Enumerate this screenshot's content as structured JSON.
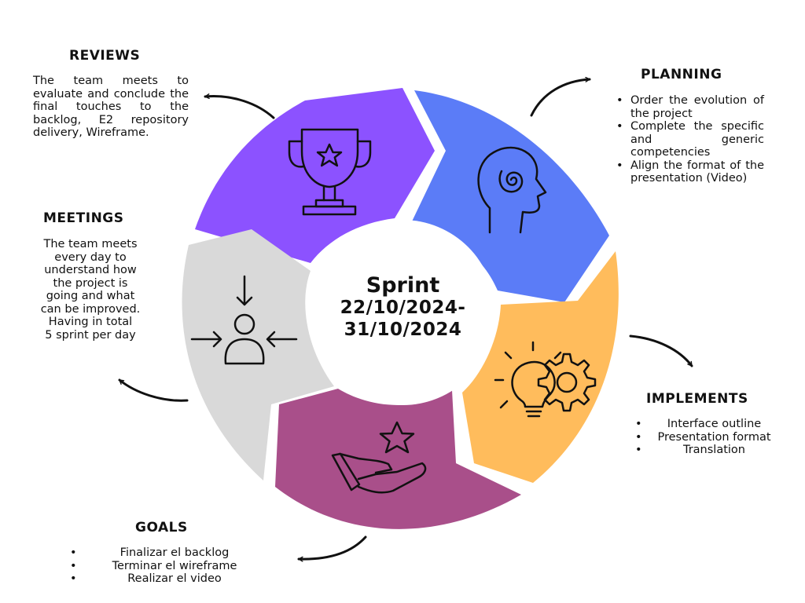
{
  "center": {
    "title": "Sprint",
    "date_start": "22/10/2024-",
    "date_end": "31/10/2024"
  },
  "colors": {
    "reviews": "#8C52FF",
    "planning": "#5B7CF7",
    "implements": "#FFBC5C",
    "goals": "#A94F8A",
    "meetings": "#D9D9D9",
    "stroke": "#111111"
  },
  "icons": {
    "reviews": "trophy-star-icon",
    "planning": "head-spiral-icon",
    "implements": "lightbulb-gear-icon",
    "goals": "hand-star-icon",
    "meetings": "person-arrows-icon"
  },
  "reviews": {
    "heading": "REVIEWS",
    "text": "The team meets to evaluate and conclude the final touches to the backlog, E2 repository delivery, Wireframe."
  },
  "planning": {
    "heading": "PLANNING",
    "items": [
      "Order the evolution of the project",
      "Complete the specific and generic competencies",
      "Align the format of the presentation (Video)"
    ]
  },
  "meetings": {
    "heading": "MEETINGS",
    "lines": [
      "The team meets",
      "every day to",
      "understand how",
      "the project is",
      "going and what",
      "can be improved.",
      "Having in total",
      "5 sprint per day"
    ]
  },
  "implements": {
    "heading": "IMPLEMENTS",
    "items": [
      "Interface outline",
      "Presentation format",
      "Translation"
    ]
  },
  "goals": {
    "heading": "GOALS",
    "items": [
      "Finalizar el backlog",
      "Terminar el wireframe",
      "Realizar el video"
    ]
  }
}
